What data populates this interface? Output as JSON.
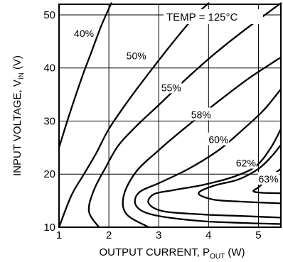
{
  "chart_data": {
    "type": "line",
    "subtype": "contour",
    "title": "",
    "xlabel": "OUTPUT CURRENT, P",
    "xlabel_sub": "OUT",
    "xlabel_suffix": " (W)",
    "ylabel": "INPUT VOLTAGE, V",
    "ylabel_sub": "IN",
    "ylabel_suffix": " (V)",
    "xlim": [
      1,
      5.45
    ],
    "ylim": [
      10,
      52
    ],
    "xticks": [
      1,
      2,
      3,
      4,
      5
    ],
    "yticks": [
      10,
      20,
      30,
      40,
      50
    ],
    "grid": true,
    "annotation": "TEMP = 125°C",
    "series": [
      {
        "name": "40%",
        "label_at": [
          1.5,
          46.5
        ],
        "points": [
          [
            1.0,
            25
          ],
          [
            1.2,
            31
          ],
          [
            1.45,
            38
          ],
          [
            1.65,
            43
          ],
          [
            1.85,
            48
          ],
          [
            2.05,
            52.2
          ]
        ]
      },
      {
        "name": "50%",
        "label_at": [
          2.55,
          42.3
        ],
        "points": [
          [
            1.0,
            10
          ],
          [
            1.25,
            16
          ],
          [
            1.5,
            20
          ],
          [
            1.75,
            24
          ],
          [
            2.0,
            28.5
          ],
          [
            2.4,
            34
          ],
          [
            2.8,
            39
          ],
          [
            3.3,
            45
          ],
          [
            3.75,
            50
          ],
          [
            4.0,
            52.2
          ]
        ]
      },
      {
        "name": "55%",
        "label_at": [
          3.25,
          36.3
        ],
        "points": [
          [
            1.8,
            10
          ],
          [
            1.6,
            13
          ],
          [
            1.7,
            17
          ],
          [
            1.95,
            21.5
          ],
          [
            2.2,
            25.5
          ],
          [
            2.6,
            29.5
          ],
          [
            3.0,
            33
          ],
          [
            3.5,
            37.5
          ],
          [
            4.1,
            42.5
          ],
          [
            4.7,
            47
          ],
          [
            5.45,
            52.2
          ]
        ]
      },
      {
        "name": "58%",
        "label_at": [
          3.85,
          31.2
        ],
        "points": [
          [
            2.8,
            10
          ],
          [
            2.35,
            12.5
          ],
          [
            2.3,
            16
          ],
          [
            2.55,
            20.5
          ],
          [
            3.0,
            24.5
          ],
          [
            3.5,
            28.5
          ],
          [
            4.1,
            33
          ],
          [
            4.8,
            38
          ],
          [
            5.45,
            42
          ]
        ]
      },
      {
        "name": "60%",
        "label_at": [
          4.2,
          26.5
        ],
        "points": [
          [
            5.45,
            36
          ],
          [
            5.1,
            32
          ],
          [
            4.7,
            28.5
          ],
          [
            4.2,
            24.5
          ],
          [
            3.6,
            21
          ],
          [
            3.05,
            18.5
          ],
          [
            2.6,
            16.5
          ],
          [
            2.55,
            14
          ],
          [
            2.9,
            12.3
          ],
          [
            3.8,
            11.2
          ],
          [
            4.7,
            10.8
          ],
          [
            5.45,
            10.6
          ]
        ]
      },
      {
        "name": "62%",
        "label_at": [
          4.75,
          22.1
        ],
        "points": [
          [
            5.45,
            28.5
          ],
          [
            5.25,
            25
          ],
          [
            4.95,
            21.5
          ],
          [
            4.5,
            19.5
          ],
          [
            3.9,
            18
          ],
          [
            3.3,
            17
          ],
          [
            2.9,
            16.2
          ],
          [
            2.8,
            14.5
          ],
          [
            3.1,
            13
          ],
          [
            3.9,
            12.4
          ],
          [
            4.7,
            12.1
          ],
          [
            5.45,
            11.8
          ]
        ]
      },
      {
        "name": "63%",
        "label_at": [
          5.2,
          19.1
        ],
        "points": [
          [
            5.45,
            25.5
          ],
          [
            5.25,
            23.2
          ],
          [
            5.0,
            21
          ],
          [
            4.6,
            19
          ],
          [
            4.1,
            17.8
          ],
          [
            3.8,
            16.4
          ],
          [
            4.1,
            15.2
          ],
          [
            4.7,
            14.8
          ],
          [
            5.45,
            14.5
          ]
        ]
      },
      {
        "name": "",
        "points": [
          [
            5.45,
            21
          ],
          [
            5.2,
            19.2
          ],
          [
            5.0,
            17.5
          ],
          [
            4.9,
            16.8
          ],
          [
            5.05,
            16.5
          ],
          [
            5.45,
            16.4
          ]
        ]
      }
    ]
  }
}
